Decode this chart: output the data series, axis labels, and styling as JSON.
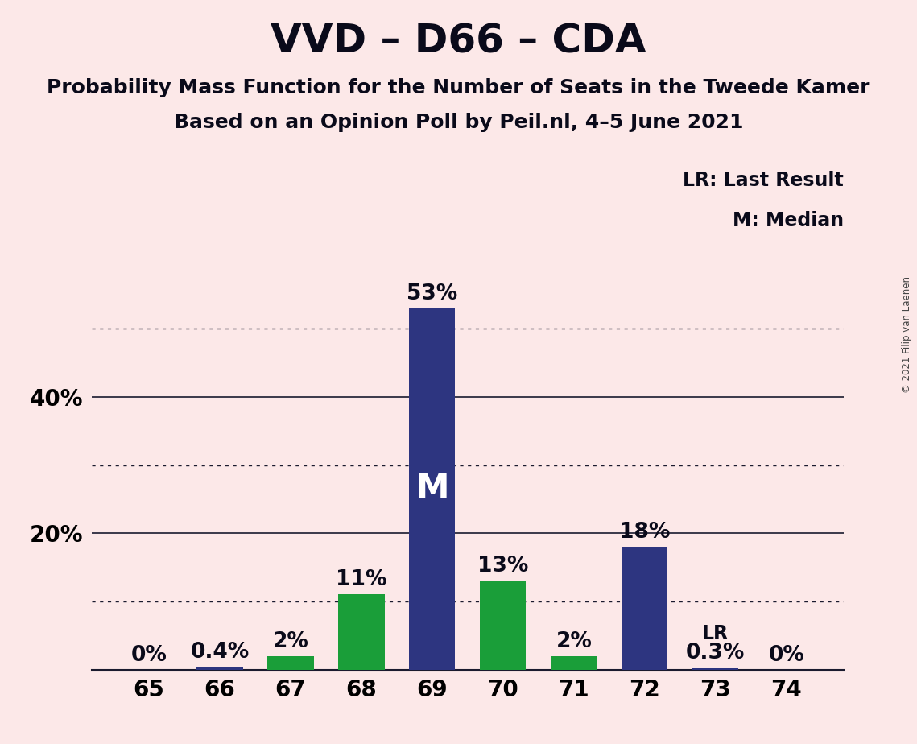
{
  "title": "VVD – D66 – CDA",
  "subtitle1": "Probability Mass Function for the Number of Seats in the Tweede Kamer",
  "subtitle2": "Based on an Opinion Poll by Peil.nl, 4–5 June 2021",
  "watermark": "© 2021 Filip van Laenen",
  "categories": [
    65,
    66,
    67,
    68,
    69,
    70,
    71,
    72,
    73,
    74
  ],
  "values": [
    0,
    0.4,
    2,
    11,
    53,
    13,
    2,
    18,
    0.3,
    0
  ],
  "bar_colors": [
    "#2d3580",
    "#2d3580",
    "#1a9e39",
    "#1a9e39",
    "#2d3580",
    "#1a9e39",
    "#1a9e39",
    "#2d3580",
    "#2d3580",
    "#2d3580"
  ],
  "median_bar_val": 69,
  "lr_bar_val": 73,
  "median_label": "M",
  "lr_label": "LR",
  "legend_lr": "LR: Last Result",
  "legend_m": "M: Median",
  "background_color": "#fce8e8",
  "ylim": [
    0,
    60
  ],
  "ytick_positions": [
    20,
    40
  ],
  "ytick_labels": [
    "20%",
    "40%"
  ],
  "dotted_grid": [
    10,
    30,
    50
  ],
  "solid_grid": [
    20,
    40
  ],
  "title_fontsize": 36,
  "subtitle_fontsize": 18,
  "label_fontsize": 17,
  "tick_fontsize": 20,
  "bar_label_fontsize": 19,
  "m_label_fontsize": 30
}
